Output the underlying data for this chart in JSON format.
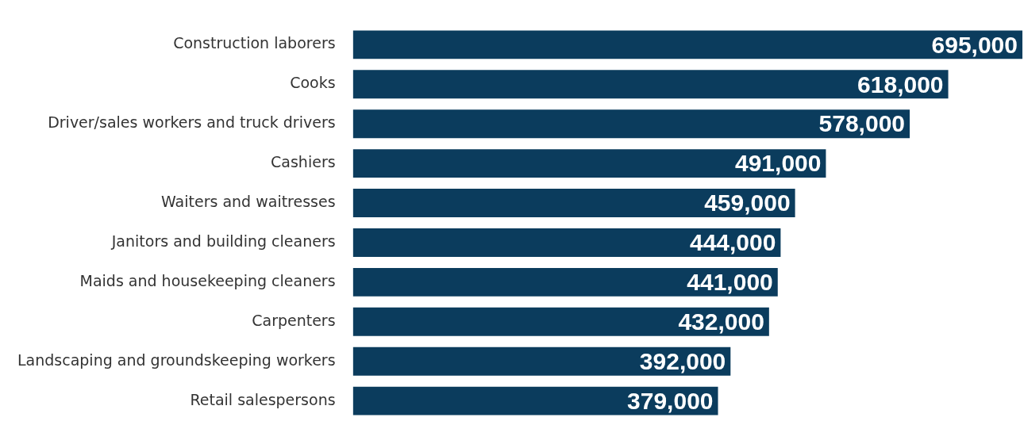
{
  "chart_data": {
    "type": "bar",
    "orientation": "horizontal",
    "categories": [
      "Construction laborers",
      "Cooks",
      "Driver/sales workers and truck drivers",
      "Cashiers",
      "Waiters and waitresses",
      "Janitors and building cleaners",
      "Maids and housekeeping cleaners",
      "Carpenters",
      "Landscaping and groundskeeping workers",
      "Retail salespersons"
    ],
    "values": [
      695000,
      618000,
      578000,
      491000,
      459000,
      444000,
      441000,
      432000,
      392000,
      379000
    ],
    "value_labels": [
      "695,000",
      "618,000",
      "578,000",
      "491,000",
      "459,000",
      "444,000",
      "441,000",
      "432,000",
      "392,000",
      "379,000"
    ],
    "color": "#0b3c5d",
    "tick_labels": "y"
  }
}
